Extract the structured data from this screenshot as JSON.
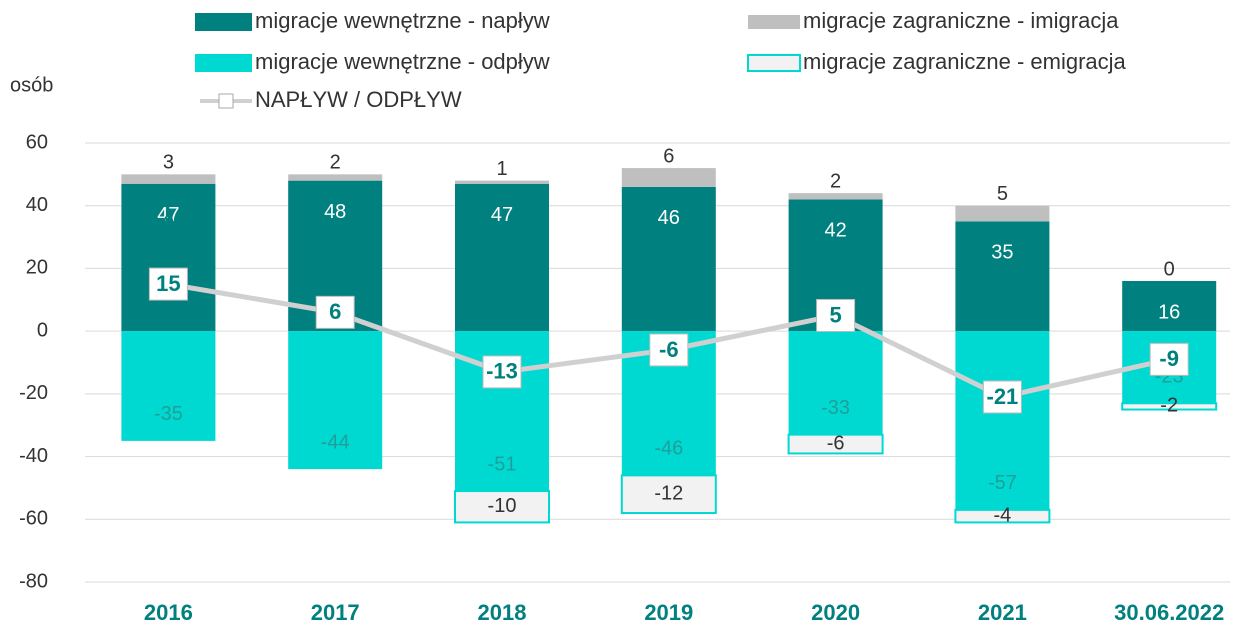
{
  "chart_data": {
    "type": "stacked_bar_line",
    "y_axis_label": "osób",
    "categories": [
      "2016",
      "2017",
      "2018",
      "2019",
      "2020",
      "2021",
      "30.06.2022"
    ],
    "series": [
      {
        "name": "migracje wewnętrzne - napływ",
        "color": "#00807f",
        "values": [
          47,
          48,
          47,
          46,
          42,
          35,
          16
        ]
      },
      {
        "name": "migracje zagraniczne - imigracja",
        "color": "#bfbfbf",
        "values": [
          3,
          2,
          1,
          6,
          2,
          5,
          0
        ]
      },
      {
        "name": "migracje wewnętrzne - odpływ",
        "color": "#00d9d2",
        "values": [
          -35,
          -44,
          -51,
          -46,
          -33,
          -57,
          -23
        ]
      },
      {
        "name": "migracje zagraniczne - emigracja",
        "color": "#f2f2f2",
        "values": [
          0,
          0,
          -10,
          -12,
          -6,
          -4,
          -2
        ]
      },
      {
        "name": "NAPŁYW / ODPŁYW",
        "color": "#d0d0d0",
        "values": [
          15,
          6,
          -13,
          -6,
          5,
          -21,
          -9
        ]
      }
    ],
    "ylim": [
      -80,
      60
    ],
    "yticks": [
      -80,
      -60,
      -40,
      -20,
      0,
      20,
      40,
      60
    ],
    "grid": true
  }
}
